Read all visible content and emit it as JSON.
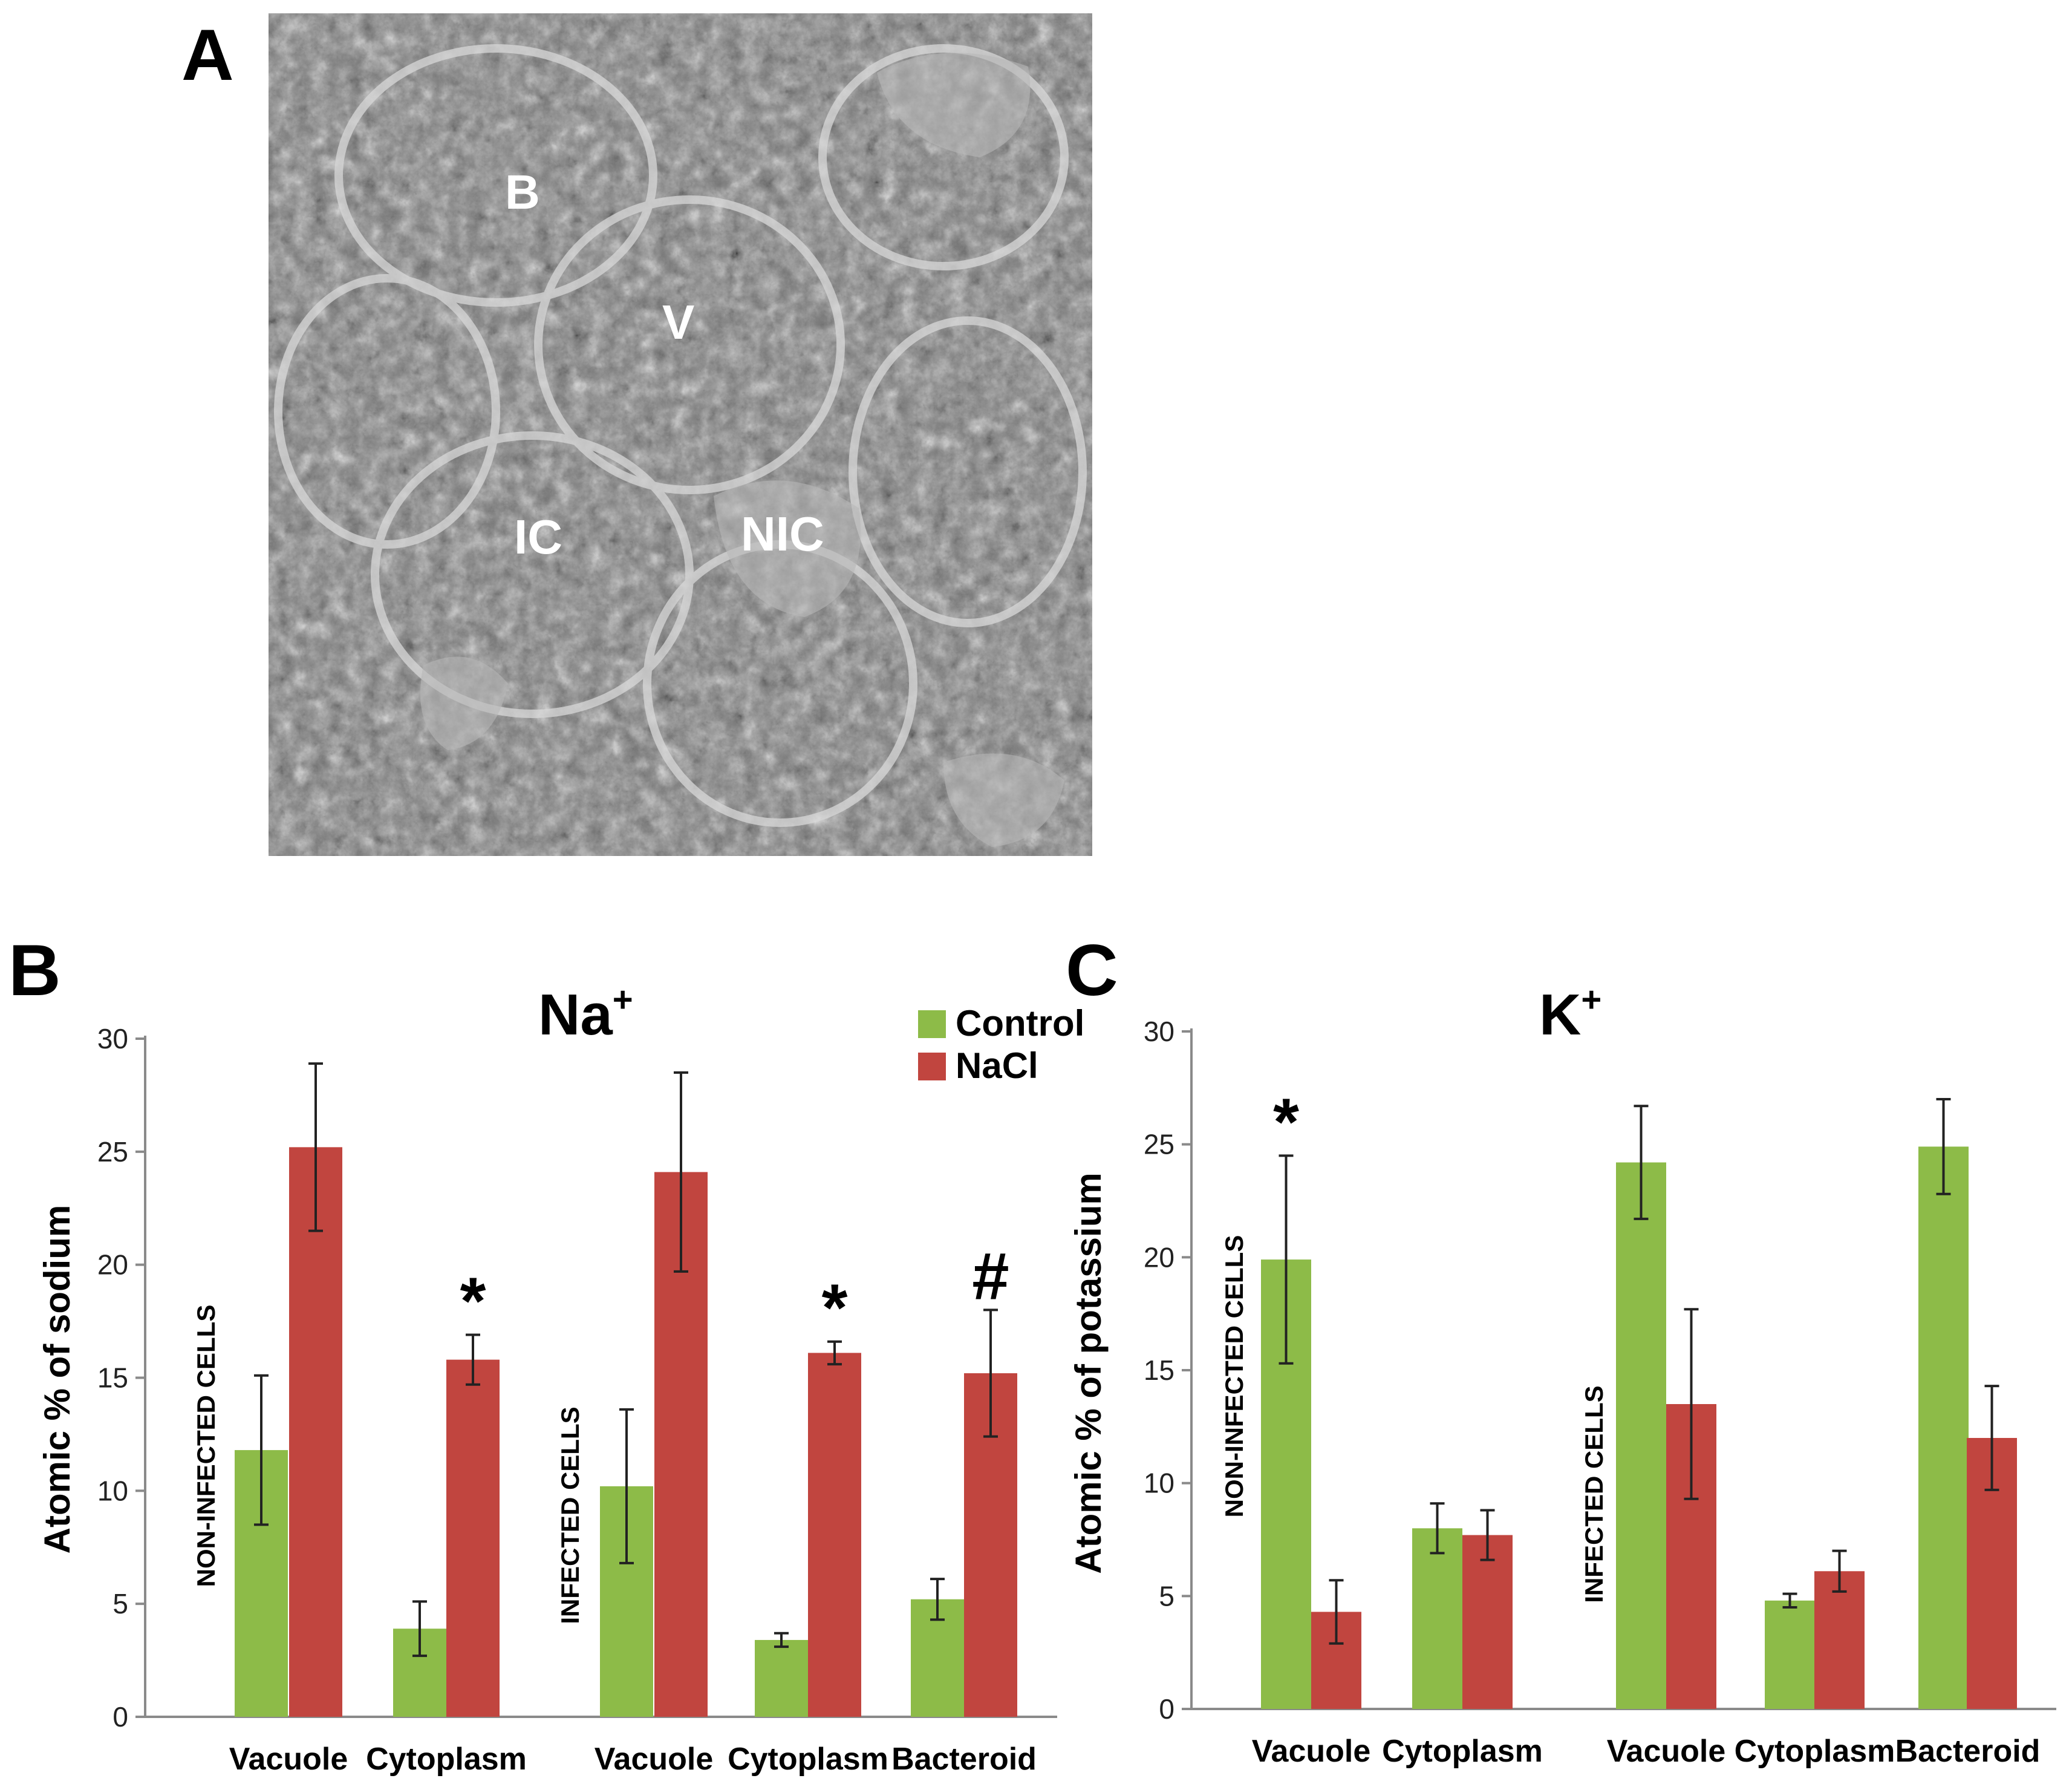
{
  "panels": {
    "a_letter": "A",
    "b_letter": "B",
    "c_letter": "C"
  },
  "micrograph": {
    "labels": [
      "B",
      "V",
      "IC",
      "NIC"
    ]
  },
  "colors": {
    "control": "#8dbb48",
    "nacl": "#c1453f",
    "micro_bg": "#7a7a7a"
  },
  "chart_data": [
    {
      "type": "bar",
      "title": "Na+",
      "ylabel": "Atomic % of sodium",
      "ylim": [
        0,
        30
      ],
      "yticks": [
        "0",
        "5",
        "10",
        "15",
        "20",
        "25",
        "30"
      ],
      "categories": [
        "Vacuole",
        "Cytoplasm",
        "Vacuole",
        "Cytoplasm",
        "Bacteroid"
      ],
      "groups": [
        {
          "label": "NON-INFECTED CELLS",
          "categories": [
            0,
            1
          ]
        },
        {
          "label": "INFECTED CELLS",
          "categories": [
            2,
            3,
            4
          ]
        }
      ],
      "legend": {
        "entries": [
          "Control",
          "NaCl"
        ],
        "position": "top-right"
      },
      "series": [
        {
          "name": "Control",
          "values": [
            11.8,
            3.9,
            10.2,
            3.4,
            5.2
          ],
          "errors": [
            3.3,
            1.2,
            3.4,
            0.3,
            0.9
          ]
        },
        {
          "name": "NaCl",
          "values": [
            25.2,
            15.8,
            24.1,
            16.1,
            15.2
          ],
          "errors": [
            3.7,
            1.1,
            4.4,
            0.5,
            2.8
          ]
        }
      ],
      "annotations": [
        {
          "text": "*",
          "category": 1
        },
        {
          "text": "*",
          "category": 3
        },
        {
          "text": "#",
          "category": 4
        }
      ]
    },
    {
      "type": "bar",
      "title": "K+",
      "ylabel": "Atomic % of potassium",
      "ylim": [
        0,
        30
      ],
      "yticks": [
        "0",
        "5",
        "10",
        "15",
        "20",
        "25",
        "30"
      ],
      "categories": [
        "Vacuole",
        "Cytoplasm",
        "Vacuole",
        "Cytoplasm",
        "Bacteroid"
      ],
      "groups": [
        {
          "label": "NON-INFECTED CELLS",
          "categories": [
            0,
            1
          ]
        },
        {
          "label": "INFECTED CELLS",
          "categories": [
            2,
            3,
            4
          ]
        }
      ],
      "series": [
        {
          "name": "Control",
          "values": [
            19.9,
            8.0,
            24.2,
            4.8,
            24.9
          ],
          "errors": [
            4.6,
            1.1,
            2.5,
            0.3,
            2.1
          ]
        },
        {
          "name": "NaCl",
          "values": [
            4.3,
            7.7,
            13.5,
            6.1,
            12.0
          ],
          "errors": [
            1.4,
            1.1,
            4.2,
            0.9,
            2.3
          ]
        }
      ],
      "annotations": [
        {
          "text": "*",
          "category": 0
        }
      ]
    }
  ]
}
